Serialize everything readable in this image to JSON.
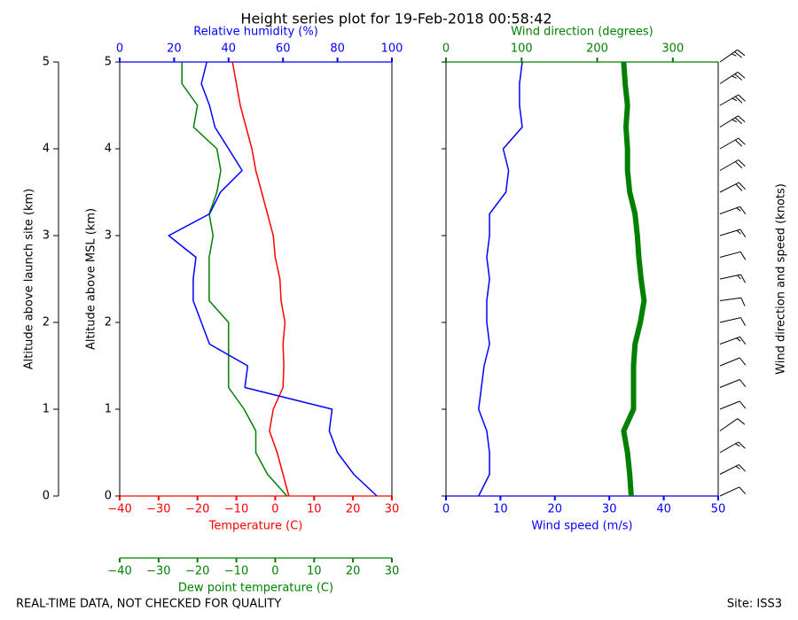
{
  "title": "Height series plot for 19-Feb-2018 00:58:42",
  "footer": {
    "left": "REAL-TIME DATA, NOT CHECKED FOR QUALITY",
    "right": "Site: ISS3"
  },
  "chart_data": [
    {
      "type": "line",
      "y": [
        0,
        0.25,
        0.5,
        0.75,
        1,
        1.25,
        1.5,
        1.75,
        2,
        2.25,
        2.5,
        2.75,
        3,
        3.25,
        3.5,
        3.75,
        4,
        4.25,
        4.5,
        4.75,
        5
      ],
      "ylim": [
        0,
        5
      ],
      "yticks": [
        0,
        1,
        2,
        3,
        4,
        5
      ],
      "y_label": "Altitude above MSL (km)",
      "y2lim": [
        0,
        5
      ],
      "y2ticks": [
        0,
        1,
        2,
        3,
        4,
        5
      ],
      "y2_label": "Altitude above launch site (km)",
      "xlim": [
        -40,
        30
      ],
      "xticks": [
        {
          "value": -40,
          "label": "−40"
        },
        {
          "value": -30,
          "label": "−30"
        },
        {
          "value": -20,
          "label": "−20"
        },
        {
          "value": -10,
          "label": "−10"
        },
        0,
        10,
        20,
        30
      ],
      "x_label": "Temperature (C)",
      "x2lim": [
        0,
        100
      ],
      "x2ticks": [
        0,
        20,
        40,
        60,
        80,
        100
      ],
      "x2_label": "Relative humidity (%)",
      "x3lim": [
        -40,
        30
      ],
      "x3ticks": [
        {
          "value": -40,
          "label": "−40"
        },
        {
          "value": -30,
          "label": "−30"
        },
        {
          "value": -20,
          "label": "−20"
        },
        {
          "value": -10,
          "label": "−10"
        },
        0,
        10,
        20,
        30
      ],
      "x3_label": "Dew point temperature (C)",
      "series": [
        {
          "color": "#ff0000",
          "axis": "x",
          "values": [
            3.5,
            2,
            0.5,
            -1.5,
            -0.5,
            2,
            2.2,
            2,
            2.5,
            1.5,
            1.2,
            0,
            -0.5,
            -2,
            -3.5,
            -5,
            -6,
            -7.5,
            -9,
            -10,
            -11
          ]
        },
        {
          "color": "#008000",
          "axis": "x3",
          "values": [
            3,
            -2,
            -5,
            -5,
            -8,
            -12,
            -12,
            -12,
            -12,
            -17,
            -17,
            -17,
            -16,
            -17,
            -15,
            -14,
            -15,
            -21,
            -20,
            -24,
            -24
          ]
        },
        {
          "color": "#0000ff",
          "axis": "x2",
          "values": [
            94.5,
            86,
            80,
            77,
            78,
            46,
            47,
            33,
            30,
            27,
            27,
            28,
            18,
            33,
            37,
            45,
            40,
            35,
            33,
            30,
            32
          ]
        }
      ]
    },
    {
      "type": "line",
      "y": [
        0,
        0.25,
        0.5,
        0.75,
        1,
        1.25,
        1.5,
        1.75,
        2,
        2.25,
        2.5,
        2.75,
        3,
        3.25,
        3.5,
        3.75,
        4,
        4.25,
        4.5,
        4.75,
        5
      ],
      "ylim": [
        0,
        5
      ],
      "yticks": [
        0,
        1,
        2,
        3,
        4,
        5
      ],
      "show_ytick_labels": false,
      "xlim": [
        0,
        50
      ],
      "xticks": [
        0,
        10,
        20,
        30,
        40,
        50
      ],
      "x_label": "Wind speed (m/s)",
      "x2lim": [
        0,
        360
      ],
      "x2ticks": [
        0,
        100,
        200,
        300
      ],
      "x2_label": "Wind direction (degrees)",
      "series": [
        {
          "color": "#0000ff",
          "axis": "x",
          "width": 1.5,
          "values": [
            6,
            8,
            8,
            7.5,
            6,
            6.5,
            7,
            8,
            7.5,
            7.5,
            8,
            7.5,
            8,
            8,
            11,
            11.5,
            10.5,
            14,
            13.5,
            13.5,
            14
          ]
        },
        {
          "color": "#008000",
          "axis": "x2",
          "width": 6,
          "values": [
            245,
            243,
            240,
            235,
            248,
            248,
            248,
            250,
            257,
            262,
            258,
            255,
            253,
            250,
            243,
            240,
            240,
            238,
            240,
            237,
            235
          ]
        }
      ],
      "barbs": true,
      "barb_label": "Wind direction and speed (knots)"
    }
  ]
}
